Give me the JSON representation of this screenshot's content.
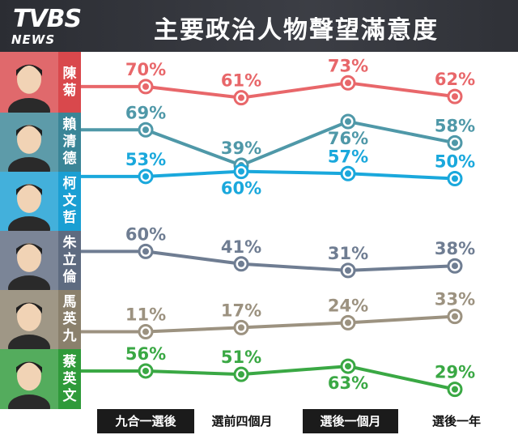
{
  "header": {
    "logo_main": "TVBS",
    "logo_sub": "NEWS",
    "title": "主要政治人物聲望滿意度"
  },
  "chart_data": {
    "type": "line",
    "title": "主要政治人物聲望滿意度",
    "categories": [
      "九合一選後",
      "選前四個月",
      "選後一個月",
      "選後一年"
    ],
    "series": [
      {
        "name": "陳菊",
        "values": [
          70,
          61,
          73,
          62
        ],
        "color": "#e8676a",
        "strip": "#d9484c"
      },
      {
        "name": "賴清德",
        "values": [
          69,
          39,
          76,
          58
        ],
        "color": "#4f98a8",
        "strip": "#3a8597"
      },
      {
        "name": "柯文哲",
        "values": [
          53,
          60,
          57,
          50
        ],
        "color": "#1aa8dc",
        "strip": "#1a9fd3"
      },
      {
        "name": "朱立倫",
        "values": [
          60,
          41,
          31,
          38
        ],
        "color": "#6f7d92",
        "strip": "#5e6b80"
      },
      {
        "name": "馬英九",
        "values": [
          11,
          17,
          24,
          33
        ],
        "color": "#9c9280",
        "strip": "#8a806c"
      },
      {
        "name": "蔡英文",
        "values": [
          56,
          51,
          63,
          29
        ],
        "color": "#3aa844",
        "strip": "#2f9a3a"
      }
    ]
  }
}
